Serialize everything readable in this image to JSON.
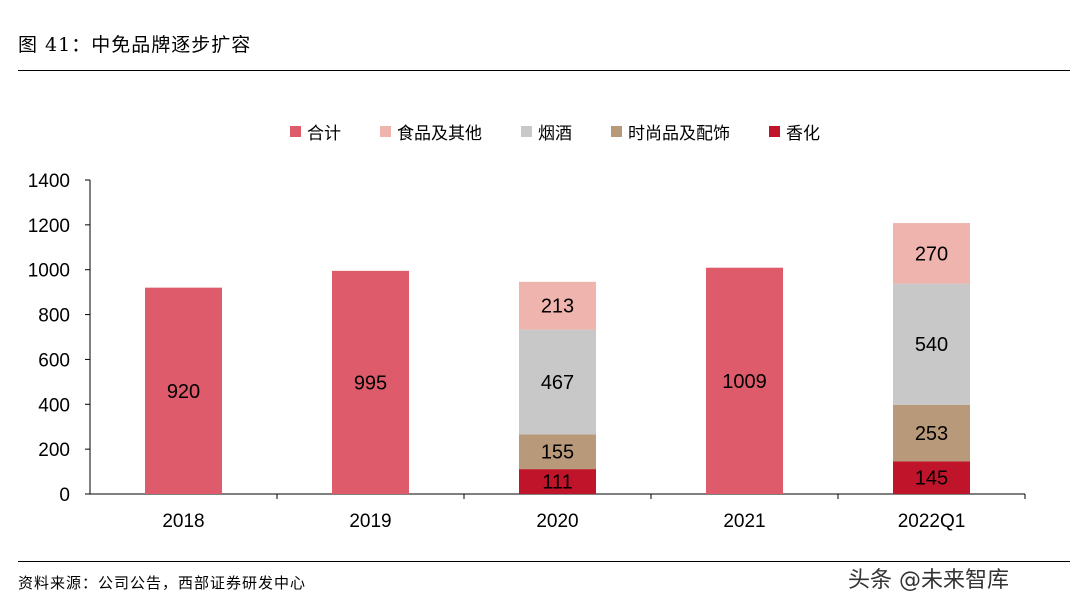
{
  "title": "图 41：中免品牌逐步扩容",
  "source": "资料来源：公司公告，西部证券研发中心",
  "watermark": "头条 @未来智库",
  "chart_data": {
    "type": "bar",
    "categories": [
      "2018",
      "2019",
      "2020",
      "2021",
      "2022Q1"
    ],
    "ylim": [
      0,
      1400
    ],
    "yticks": [
      0,
      200,
      400,
      600,
      800,
      1000,
      1200,
      1400
    ],
    "legend_position": "top",
    "grid": false,
    "series": [
      {
        "name": "合计",
        "color": "#de5b6b",
        "values": [
          920,
          995,
          null,
          1009,
          null
        ]
      },
      {
        "name": "食品及其他",
        "color": "#efb4ad",
        "values": [
          null,
          null,
          213,
          null,
          270
        ]
      },
      {
        "name": "烟酒",
        "color": "#c8c8c8",
        "values": [
          null,
          null,
          467,
          null,
          540
        ]
      },
      {
        "name": "时尚品及配饰",
        "color": "#b89a7a",
        "values": [
          null,
          null,
          155,
          null,
          253
        ]
      },
      {
        "name": "香化",
        "color": "#c0142a",
        "values": [
          null,
          null,
          111,
          null,
          145
        ]
      }
    ],
    "stack_order": [
      "香化",
      "时尚品及配饰",
      "烟酒",
      "食品及其他"
    ]
  }
}
